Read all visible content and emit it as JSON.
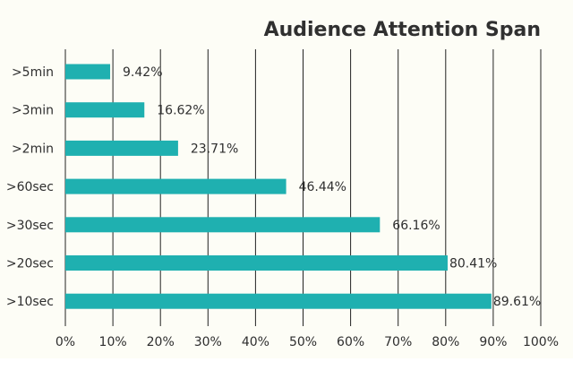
{
  "chart_data": {
    "type": "bar",
    "orientation": "horizontal",
    "title": "Audience Attention Span",
    "categories": [
      ">5min",
      ">3min",
      ">2min",
      ">60sec",
      ">30sec",
      ">20sec",
      ">10sec"
    ],
    "values": [
      9.42,
      16.62,
      23.71,
      46.44,
      66.16,
      80.41,
      89.61
    ],
    "value_labels": [
      "9.42%",
      "16.62%",
      "23.71%",
      "46.44%",
      "66.16%",
      "80.41%",
      "89.61%"
    ],
    "x_ticks": [
      "0%",
      "10%",
      "20%",
      "30%",
      "40%",
      "50%",
      "60%",
      "70%",
      "80%",
      "90%",
      "100%"
    ],
    "xlim": [
      0,
      100
    ],
    "xlabel": "",
    "ylabel": "",
    "grid": "vertical",
    "legend": "none",
    "colors": {
      "bar": "#1fb0b0",
      "background": "#fdfdf6",
      "grid": "#222222",
      "text": "#2e2e2e"
    }
  }
}
